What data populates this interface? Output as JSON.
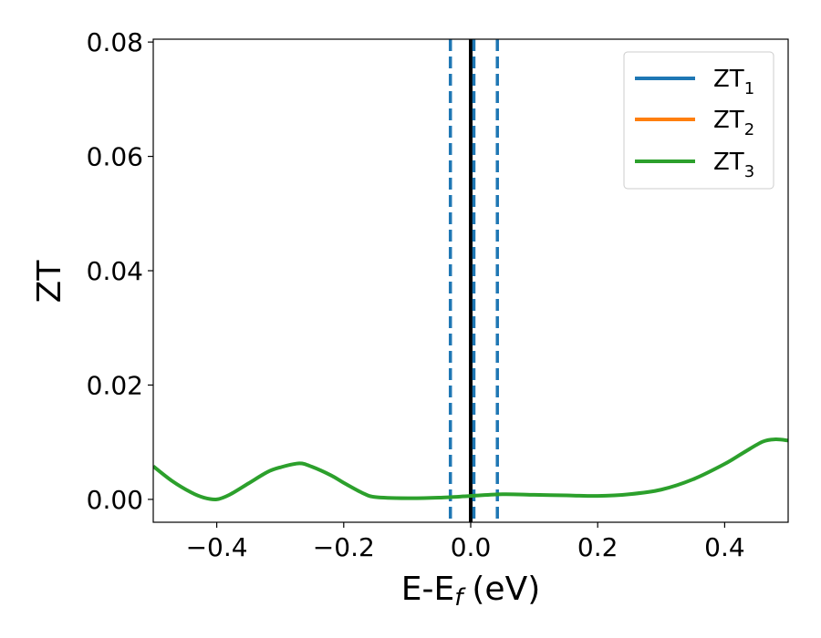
{
  "chart_data": {
    "type": "line",
    "title": "",
    "xlabel": "E-E",
    "xlabel_sub": "f",
    "xlabel_unit": "(eV)",
    "ylabel": "ZT",
    "xlim": [
      -0.5,
      0.5
    ],
    "ylim": [
      -0.004,
      0.0805
    ],
    "xticks": [
      -0.4,
      -0.2,
      0.0,
      0.2,
      0.4
    ],
    "xtick_labels": [
      "−0.4",
      "−0.2",
      "0.0",
      "0.2",
      "0.4"
    ],
    "yticks": [
      0.0,
      0.02,
      0.04,
      0.06,
      0.08
    ],
    "ytick_labels": [
      "0.00",
      "0.02",
      "0.04",
      "0.06",
      "0.08"
    ],
    "legend_position": "top-right",
    "grid": false,
    "series": [
      {
        "name": "ZT",
        "sub": "1",
        "color": "#1f77b4",
        "x": [],
        "y": []
      },
      {
        "name": "ZT",
        "sub": "2",
        "color": "#ff7f0e",
        "x": [],
        "y": []
      },
      {
        "name": "ZT",
        "sub": "3",
        "color": "#2ca02c",
        "x": [
          -0.5,
          -0.47,
          -0.44,
          -0.42,
          -0.4,
          -0.38,
          -0.35,
          -0.32,
          -0.3,
          -0.27,
          -0.25,
          -0.22,
          -0.2,
          -0.17,
          -0.15,
          -0.1,
          -0.05,
          0.0,
          0.05,
          0.1,
          0.15,
          0.2,
          0.25,
          0.3,
          0.35,
          0.4,
          0.43,
          0.46,
          0.48,
          0.5
        ],
        "y": [
          0.0058,
          0.0032,
          0.0012,
          0.0003,
          0.0,
          0.0008,
          0.0028,
          0.0048,
          0.0056,
          0.0063,
          0.0057,
          0.0042,
          0.0029,
          0.0011,
          0.0004,
          0.0002,
          0.0003,
          0.0006,
          0.0009,
          0.0008,
          0.0007,
          0.0006,
          0.0009,
          0.0017,
          0.0035,
          0.0062,
          0.0082,
          0.0101,
          0.0105,
          0.0103
        ]
      }
    ],
    "vlines": [
      {
        "x": 0.0,
        "color": "#000000",
        "style": "solid"
      },
      {
        "x": -0.032,
        "color": "#1f77b4",
        "style": "dashed"
      },
      {
        "x": 0.005,
        "color": "#1f77b4",
        "style": "dashed"
      },
      {
        "x": 0.042,
        "color": "#1f77b4",
        "style": "dashed"
      }
    ]
  }
}
